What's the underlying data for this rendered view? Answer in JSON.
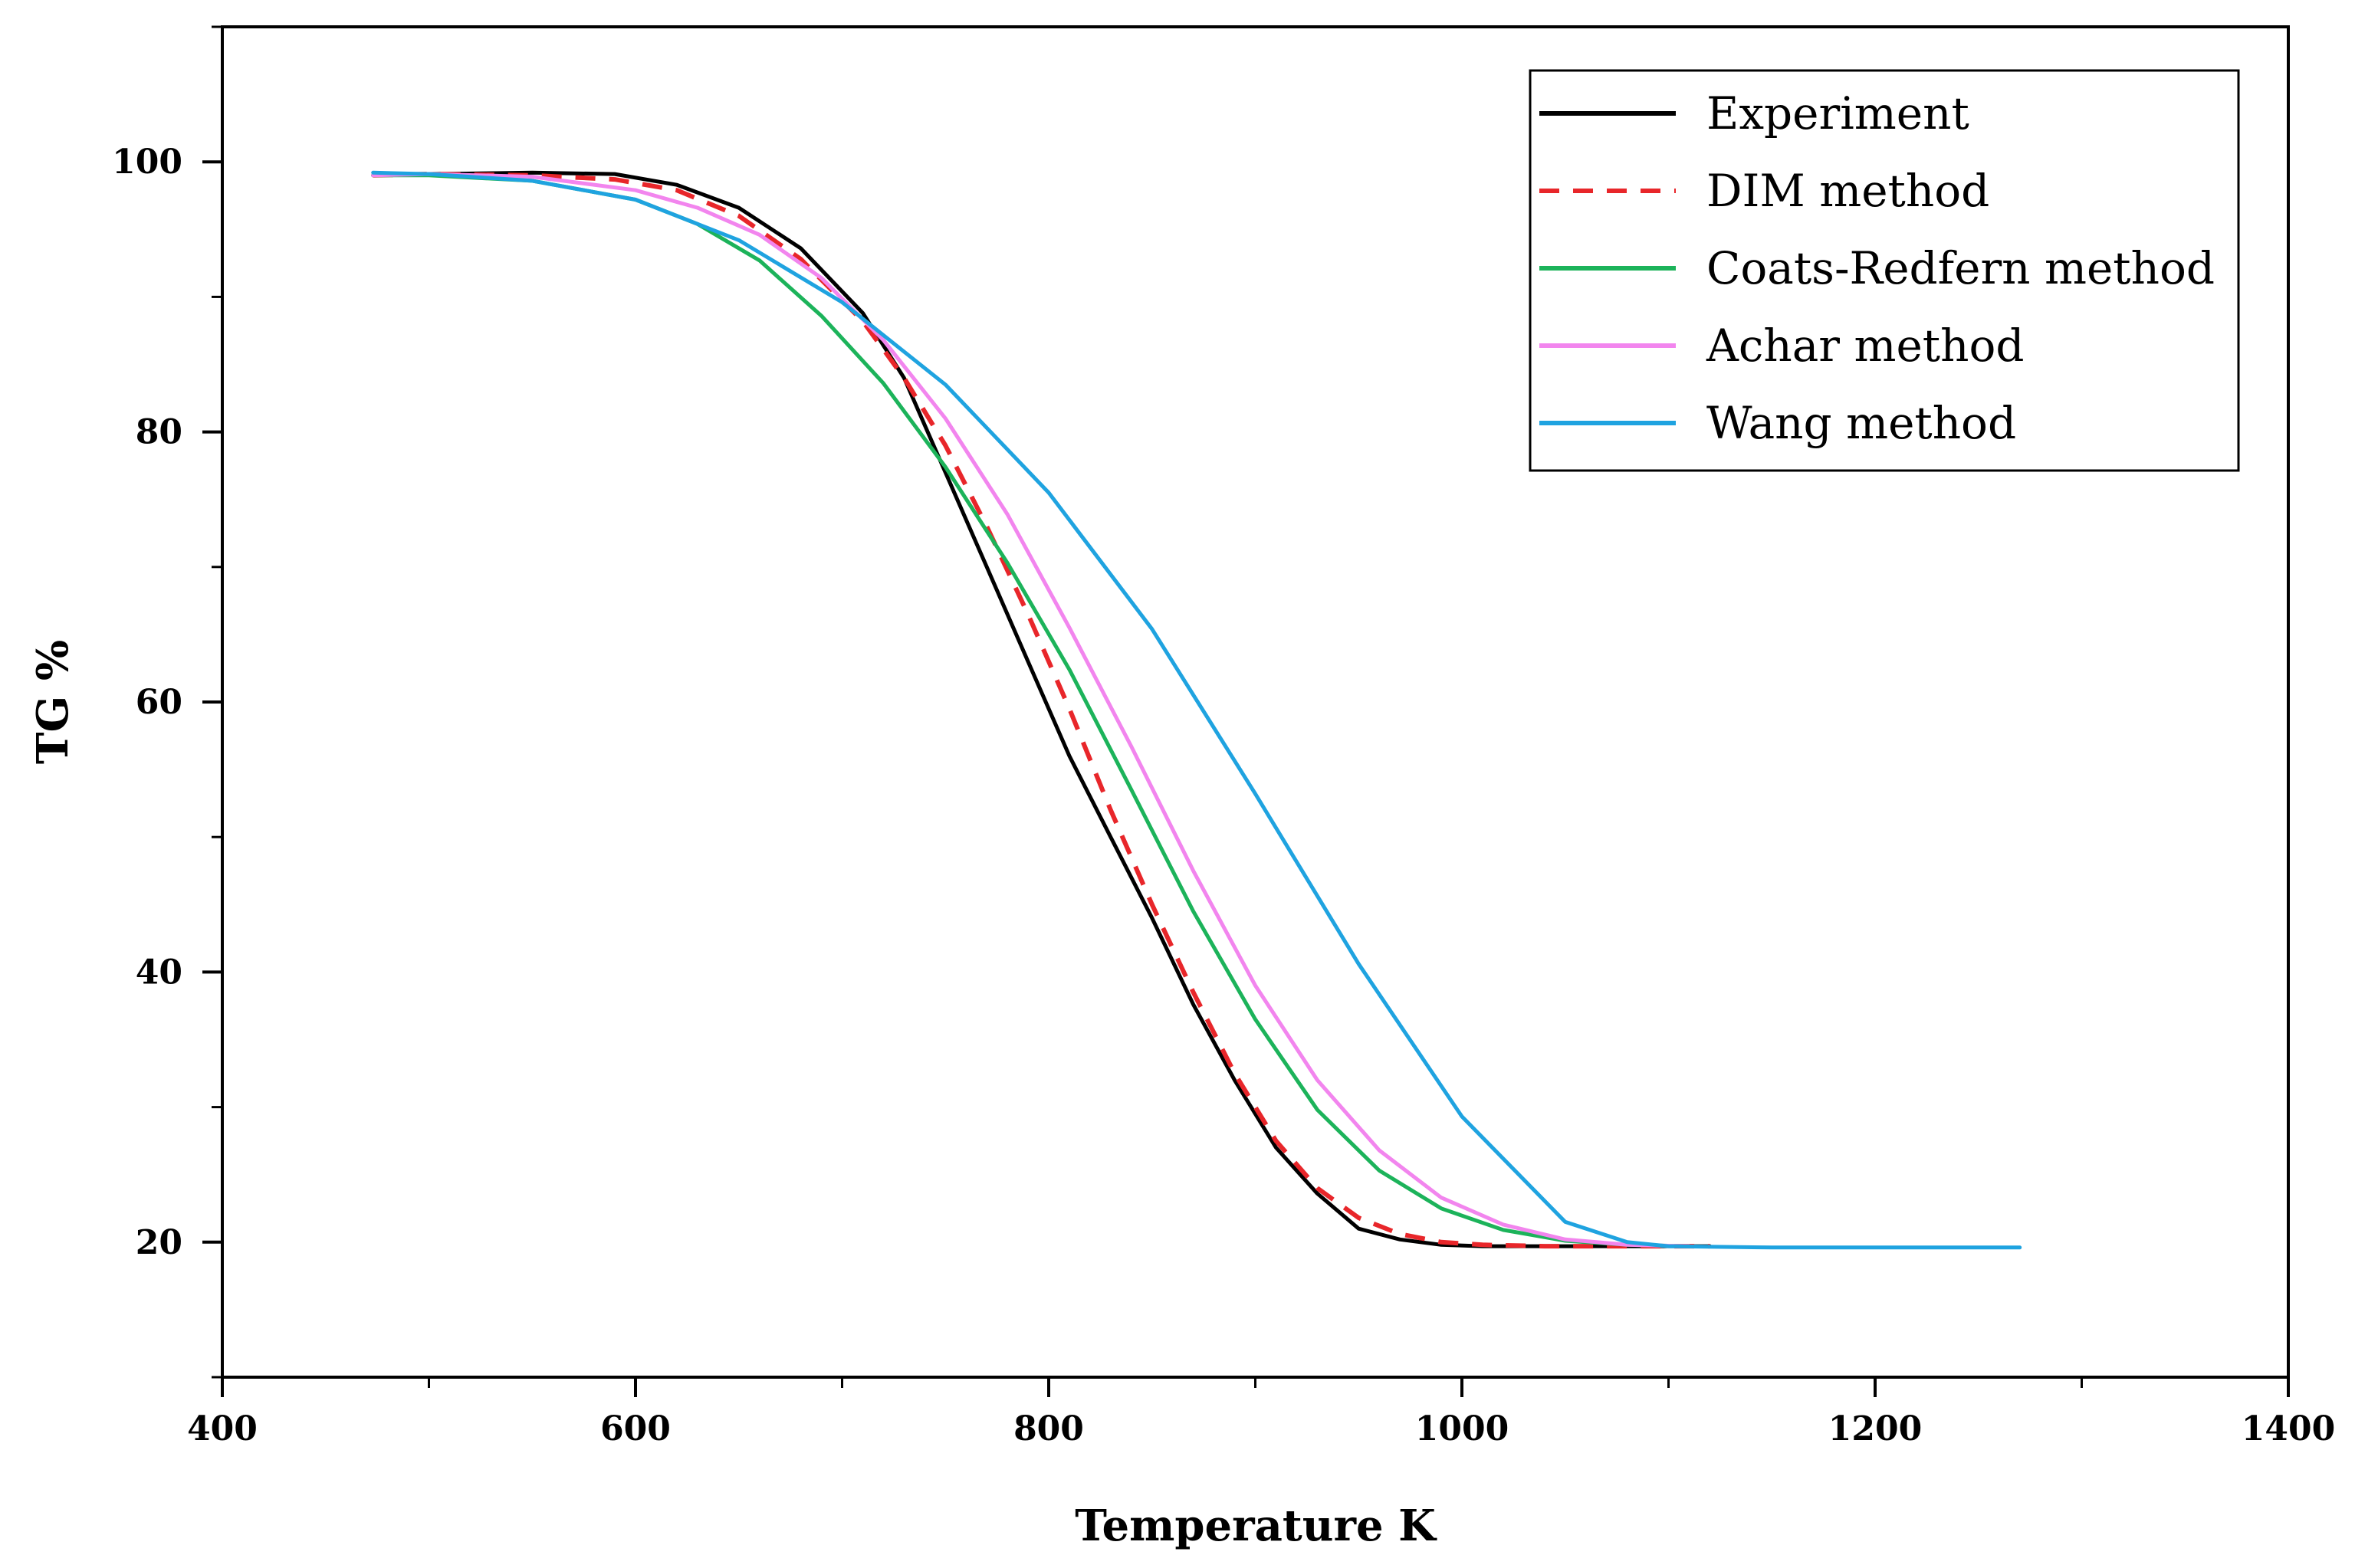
{
  "chart_data": {
    "type": "line",
    "title": "",
    "xlabel": "Temperature K",
    "ylabel": "TG %",
    "xlim": [
      400,
      1400
    ],
    "ylim": [
      10,
      110
    ],
    "x_ticks": [
      400,
      600,
      800,
      1000,
      1200,
      1400
    ],
    "y_ticks": [
      20,
      40,
      60,
      80,
      100
    ],
    "x_minor_step": 100,
    "y_minor_step": 10,
    "legend_position": "top-right",
    "series": [
      {
        "name": "Experiment",
        "color": "#000000",
        "dash": "solid",
        "x": [
          473,
          500,
          550,
          590,
          620,
          650,
          680,
          710,
          730,
          750,
          770,
          790,
          810,
          830,
          850,
          870,
          890,
          910,
          930,
          950,
          970,
          990,
          1010,
          1040,
          1070,
          1100,
          1120
        ],
        "y": [
          99.0,
          99.1,
          99.2,
          99.1,
          98.3,
          96.6,
          93.6,
          88.8,
          84.0,
          77.0,
          70.0,
          63.0,
          56.0,
          50.0,
          44.0,
          37.6,
          32.0,
          27.0,
          23.6,
          21.0,
          20.2,
          19.8,
          19.7,
          19.7,
          19.7,
          19.7,
          19.7
        ]
      },
      {
        "name": "DIM method",
        "color": "#e8262a",
        "dash": "dashed",
        "x": [
          473,
          500,
          550,
          590,
          620,
          650,
          680,
          710,
          730,
          750,
          770,
          790,
          810,
          830,
          850,
          870,
          890,
          910,
          930,
          950,
          970,
          990,
          1010,
          1040,
          1070,
          1100,
          1120
        ],
        "y": [
          99.0,
          99.1,
          99.0,
          98.7,
          97.9,
          96.0,
          92.8,
          88.2,
          84.0,
          79.0,
          73.0,
          66.5,
          59.5,
          52.0,
          45.0,
          38.5,
          32.5,
          27.5,
          24.0,
          21.8,
          20.6,
          20.0,
          19.8,
          19.7,
          19.7,
          19.7,
          19.7
        ]
      },
      {
        "name": "Coats-Redfern method",
        "color": "#1cb35a",
        "dash": "solid",
        "x": [
          473,
          500,
          550,
          600,
          630,
          660,
          690,
          720,
          750,
          780,
          810,
          840,
          870,
          900,
          930,
          960,
          990,
          1020,
          1050,
          1080,
          1110
        ],
        "y": [
          99.0,
          99.0,
          98.6,
          97.2,
          95.4,
          92.7,
          88.6,
          83.6,
          77.4,
          70.3,
          62.4,
          53.5,
          44.5,
          36.5,
          29.8,
          25.3,
          22.5,
          20.9,
          20.1,
          19.8,
          19.7
        ]
      },
      {
        "name": "Achar method",
        "color": "#f285ee",
        "dash": "solid",
        "x": [
          473,
          500,
          550,
          600,
          630,
          660,
          690,
          720,
          750,
          780,
          810,
          840,
          870,
          900,
          930,
          960,
          990,
          1020,
          1050,
          1080,
          1110
        ],
        "y": [
          99.0,
          99.1,
          98.9,
          97.9,
          96.6,
          94.6,
          91.4,
          86.8,
          81.0,
          73.9,
          65.5,
          56.7,
          47.5,
          39.0,
          32.0,
          26.8,
          23.3,
          21.3,
          20.2,
          19.8,
          19.7
        ]
      },
      {
        "name": "Wang method",
        "color": "#1fa3e0",
        "dash": "solid",
        "x": [
          473,
          500,
          550,
          600,
          650,
          700,
          750,
          800,
          850,
          900,
          950,
          1000,
          1050,
          1080,
          1100,
          1150,
          1200,
          1270
        ],
        "y": [
          99.2,
          99.1,
          98.6,
          97.2,
          94.2,
          89.6,
          83.5,
          75.5,
          65.4,
          53.2,
          40.6,
          29.3,
          21.5,
          20.0,
          19.7,
          19.6,
          19.6,
          19.6
        ]
      }
    ]
  }
}
